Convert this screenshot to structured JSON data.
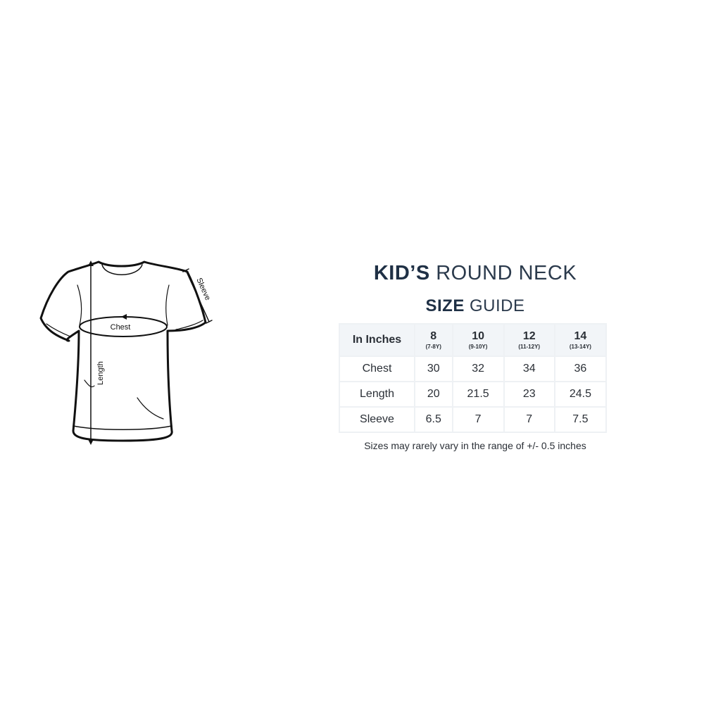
{
  "title": {
    "bold": "KID’S",
    "light": "ROUND NECK"
  },
  "subtitle": {
    "bold": "SIZE",
    "light": "GUIDE"
  },
  "diagram_labels": {
    "chest": "Chest",
    "length": "Length",
    "sleeve": "Sleeve"
  },
  "table": {
    "corner": "In Inches",
    "sizes": [
      {
        "size": "8",
        "age": "(7-8Y)"
      },
      {
        "size": "10",
        "age": "(9-10Y)"
      },
      {
        "size": "12",
        "age": "(11-12Y)"
      },
      {
        "size": "14",
        "age": "(13-14Y)"
      }
    ],
    "rows": [
      {
        "label": "Chest",
        "values": [
          "30",
          "32",
          "34",
          "36"
        ]
      },
      {
        "label": "Length",
        "values": [
          "20",
          "21.5",
          "23",
          "24.5"
        ]
      },
      {
        "label": "Sleeve",
        "values": [
          "6.5",
          "7",
          "7",
          "7.5"
        ]
      }
    ]
  },
  "note": "Sizes may rarely vary in the range of +/- 0.5 inches"
}
